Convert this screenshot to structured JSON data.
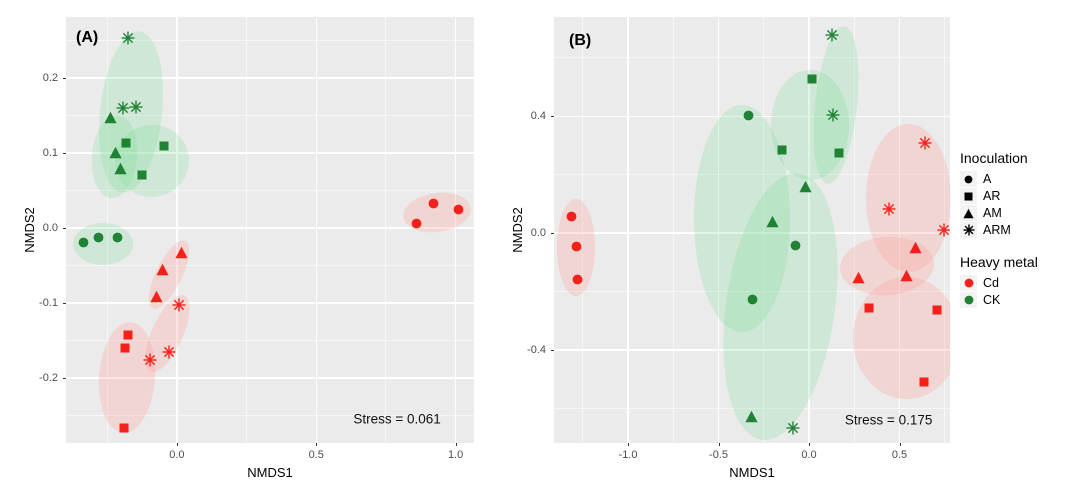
{
  "figure": {
    "panel_background": "#ebebeb",
    "grid_color": "#ffffff",
    "tick_label_color": "#4d4d4d",
    "legend_symbol_color": "#000000"
  },
  "chart_data": {
    "type": "scatter",
    "description": "Two NMDS ordination panels (A, B) with group confidence ellipses",
    "shape_map": {
      "A": "circle",
      "AR": "square",
      "AM": "triangle",
      "ARM": "star"
    },
    "colors": {
      "Cd": "#f32119",
      "CK": "#1f8234",
      "Cd_ellipse": "rgba(255,158,150,0.28)",
      "CK_ellipse": "rgba(125,218,152,0.25)"
    },
    "legend": {
      "inoculation": {
        "title": "Inoculation",
        "items": [
          {
            "label": "A",
            "shape": "circle"
          },
          {
            "label": "AR",
            "shape": "square"
          },
          {
            "label": "AM",
            "shape": "triangle"
          },
          {
            "label": "ARM",
            "shape": "star"
          }
        ]
      },
      "heavy_metal": {
        "title": "Heavy metal",
        "items": [
          {
            "label": "Cd",
            "color_key": "Cd"
          },
          {
            "label": "CK",
            "color_key": "CK"
          }
        ]
      }
    },
    "panels": [
      {
        "label": "(A)",
        "xlabel": "NMDS1",
        "ylabel": "NMDS2",
        "stress": {
          "text": "Stress = 0.061",
          "x": 0.79,
          "y": -0.255
        },
        "xlim": [
          -0.398,
          1.066
        ],
        "ylim": [
          -0.287,
          0.281
        ],
        "xticks": [
          {
            "v": 0.0,
            "label": "0.0"
          },
          {
            "v": 0.5,
            "label": "0.5"
          },
          {
            "v": 1.0,
            "label": "1.0"
          }
        ],
        "yticks": [
          {
            "v": 0.2,
            "label": "0.2"
          },
          {
            "v": 0.1,
            "label": "0.1"
          },
          {
            "v": 0.0,
            "label": "0.0"
          },
          {
            "v": -0.1,
            "label": "-0.1"
          },
          {
            "v": -0.2,
            "label": "-0.2"
          }
        ],
        "xminor": [
          -0.25,
          0.25,
          0.75
        ],
        "yminor": [
          0.25,
          0.15,
          0.05,
          -0.05,
          -0.15,
          -0.25
        ],
        "points": [
          {
            "inoculation": "ARM",
            "metal": "CK",
            "x": -0.176,
            "y": 0.253
          },
          {
            "inoculation": "ARM",
            "metal": "CK",
            "x": -0.194,
            "y": 0.16
          },
          {
            "inoculation": "ARM",
            "metal": "CK",
            "x": -0.147,
            "y": 0.161
          },
          {
            "inoculation": "AM",
            "metal": "CK",
            "x": -0.24,
            "y": 0.147
          },
          {
            "inoculation": "AM",
            "metal": "CK",
            "x": -0.222,
            "y": 0.101
          },
          {
            "inoculation": "AM",
            "metal": "CK",
            "x": -0.201,
            "y": 0.079
          },
          {
            "inoculation": "AR",
            "metal": "CK",
            "x": -0.183,
            "y": 0.113
          },
          {
            "inoculation": "AR",
            "metal": "CK",
            "x": -0.047,
            "y": 0.109
          },
          {
            "inoculation": "AR",
            "metal": "CK",
            "x": -0.126,
            "y": 0.071
          },
          {
            "inoculation": "A",
            "metal": "CK",
            "x": -0.337,
            "y": -0.02
          },
          {
            "inoculation": "A",
            "metal": "CK",
            "x": -0.283,
            "y": -0.013
          },
          {
            "inoculation": "A",
            "metal": "CK",
            "x": -0.215,
            "y": -0.013
          },
          {
            "inoculation": "A",
            "metal": "Cd",
            "x": 0.86,
            "y": 0.006
          },
          {
            "inoculation": "A",
            "metal": "Cd",
            "x": 0.92,
            "y": 0.033
          },
          {
            "inoculation": "A",
            "metal": "Cd",
            "x": 1.01,
            "y": 0.025
          },
          {
            "inoculation": "AM",
            "metal": "Cd",
            "x": 0.018,
            "y": -0.033
          },
          {
            "inoculation": "AM",
            "metal": "Cd",
            "x": -0.05,
            "y": -0.055
          },
          {
            "inoculation": "AM",
            "metal": "Cd",
            "x": -0.075,
            "y": -0.092
          },
          {
            "inoculation": "ARM",
            "metal": "Cd",
            "x": 0.007,
            "y": -0.103
          },
          {
            "inoculation": "ARM",
            "metal": "Cd",
            "x": -0.029,
            "y": -0.165
          },
          {
            "inoculation": "ARM",
            "metal": "Cd",
            "x": -0.097,
            "y": -0.176
          },
          {
            "inoculation": "AR",
            "metal": "Cd",
            "x": -0.176,
            "y": -0.143
          },
          {
            "inoculation": "AR",
            "metal": "Cd",
            "x": -0.187,
            "y": -0.16
          },
          {
            "inoculation": "AR",
            "metal": "Cd",
            "x": -0.19,
            "y": -0.267
          }
        ],
        "ellipses": [
          {
            "metal": "CK",
            "cx": -0.165,
            "cy": 0.155,
            "rx": 0.112,
            "ry": 0.108,
            "rot": 6
          },
          {
            "metal": "CK",
            "cx": -0.225,
            "cy": 0.096,
            "rx": 0.08,
            "ry": 0.055,
            "rot": 5
          },
          {
            "metal": "CK",
            "cx": -0.09,
            "cy": 0.089,
            "rx": 0.132,
            "ry": 0.048,
            "rot": -14
          },
          {
            "metal": "CK",
            "cx": -0.265,
            "cy": -0.021,
            "rx": 0.108,
            "ry": 0.028,
            "rot": 0
          },
          {
            "metal": "Cd",
            "cx": 0.933,
            "cy": 0.02,
            "rx": 0.122,
            "ry": 0.026,
            "rot": -8
          },
          {
            "metal": "Cd",
            "cx": -0.03,
            "cy": -0.062,
            "rx": 0.046,
            "ry": 0.05,
            "rot": 26
          },
          {
            "metal": "Cd",
            "cx": -0.033,
            "cy": -0.141,
            "rx": 0.055,
            "ry": 0.055,
            "rot": 24
          },
          {
            "metal": "Cd",
            "cx": -0.18,
            "cy": -0.2,
            "rx": 0.1,
            "ry": 0.074,
            "rot": 4
          }
        ]
      },
      {
        "label": "(B)",
        "xlabel": "NMDS1",
        "ylabel": "NMDS2",
        "stress": {
          "text": "Stress = 0.175",
          "x": 0.44,
          "y": -0.64
        },
        "xlim": [
          -1.409,
          0.779
        ],
        "ylim": [
          -0.719,
          0.74
        ],
        "xticks": [
          {
            "v": -1.0,
            "label": "-1.0"
          },
          {
            "v": -0.5,
            "label": "-0.5"
          },
          {
            "v": 0.0,
            "label": "0.0"
          },
          {
            "v": 0.5,
            "label": "0.5"
          }
        ],
        "yticks": [
          {
            "v": 0.4,
            "label": "0.4"
          },
          {
            "v": 0.0,
            "label": "0.0"
          },
          {
            "v": -0.4,
            "label": "-0.4"
          }
        ],
        "xminor": [
          -1.25,
          -0.75,
          -0.25,
          0.25,
          0.75
        ],
        "yminor": [
          0.6,
          0.2,
          -0.2,
          -0.6
        ],
        "points": [
          {
            "inoculation": "ARM",
            "metal": "CK",
            "x": 0.127,
            "y": 0.678
          },
          {
            "inoculation": "ARM",
            "metal": "CK",
            "x": 0.133,
            "y": 0.404
          },
          {
            "inoculation": "ARM",
            "metal": "CK",
            "x": -0.088,
            "y": -0.668
          },
          {
            "inoculation": "AR",
            "metal": "CK",
            "x": 0.017,
            "y": 0.527
          },
          {
            "inoculation": "AR",
            "metal": "CK",
            "x": -0.149,
            "y": 0.284
          },
          {
            "inoculation": "AR",
            "metal": "CK",
            "x": 0.166,
            "y": 0.274
          },
          {
            "inoculation": "A",
            "metal": "CK",
            "x": -0.337,
            "y": 0.401
          },
          {
            "inoculation": "A",
            "metal": "CK",
            "x": -0.077,
            "y": -0.041
          },
          {
            "inoculation": "A",
            "metal": "CK",
            "x": -0.315,
            "y": -0.226
          },
          {
            "inoculation": "AM",
            "metal": "CK",
            "x": -0.017,
            "y": 0.158
          },
          {
            "inoculation": "AM",
            "metal": "CK",
            "x": -0.204,
            "y": 0.038
          },
          {
            "inoculation": "AM",
            "metal": "CK",
            "x": -0.32,
            "y": -0.627
          },
          {
            "inoculation": "A",
            "metal": "Cd",
            "x": -1.311,
            "y": 0.058
          },
          {
            "inoculation": "A",
            "metal": "Cd",
            "x": -1.287,
            "y": -0.045
          },
          {
            "inoculation": "A",
            "metal": "Cd",
            "x": -1.278,
            "y": -0.159
          },
          {
            "inoculation": "ARM",
            "metal": "Cd",
            "x": 0.641,
            "y": 0.308
          },
          {
            "inoculation": "ARM",
            "metal": "Cd",
            "x": 0.442,
            "y": 0.082
          },
          {
            "inoculation": "ARM",
            "metal": "Cd",
            "x": 0.746,
            "y": 0.01
          },
          {
            "inoculation": "AM",
            "metal": "Cd",
            "x": 0.276,
            "y": -0.151
          },
          {
            "inoculation": "AM",
            "metal": "Cd",
            "x": 0.541,
            "y": -0.147
          },
          {
            "inoculation": "AM",
            "metal": "Cd",
            "x": 0.586,
            "y": -0.051
          },
          {
            "inoculation": "AR",
            "metal": "Cd",
            "x": 0.331,
            "y": -0.257
          },
          {
            "inoculation": "AR",
            "metal": "Cd",
            "x": 0.707,
            "y": -0.264
          },
          {
            "inoculation": "AR",
            "metal": "Cd",
            "x": 0.635,
            "y": -0.51
          }
        ],
        "ellipses": [
          {
            "metal": "CK",
            "cx": 0.15,
            "cy": 0.44,
            "rx": 0.115,
            "ry": 0.27,
            "rot": 6
          },
          {
            "metal": "CK",
            "cx": 0.005,
            "cy": 0.37,
            "rx": 0.215,
            "ry": 0.19,
            "rot": 0
          },
          {
            "metal": "CK",
            "cx": -0.37,
            "cy": 0.05,
            "rx": 0.265,
            "ry": 0.39,
            "rot": 0
          },
          {
            "metal": "CK",
            "cx": -0.16,
            "cy": -0.25,
            "rx": 0.3,
            "ry": 0.46,
            "rot": 8
          },
          {
            "metal": "Cd",
            "cx": -1.285,
            "cy": -0.05,
            "rx": 0.105,
            "ry": 0.165,
            "rot": 0
          },
          {
            "metal": "Cd",
            "cx": 0.55,
            "cy": 0.12,
            "rx": 0.235,
            "ry": 0.255,
            "rot": 0
          },
          {
            "metal": "Cd",
            "cx": 0.43,
            "cy": -0.115,
            "rx": 0.26,
            "ry": 0.1,
            "rot": -4
          },
          {
            "metal": "Cd",
            "cx": 0.54,
            "cy": -0.36,
            "rx": 0.295,
            "ry": 0.21,
            "rot": 0
          }
        ]
      }
    ]
  }
}
